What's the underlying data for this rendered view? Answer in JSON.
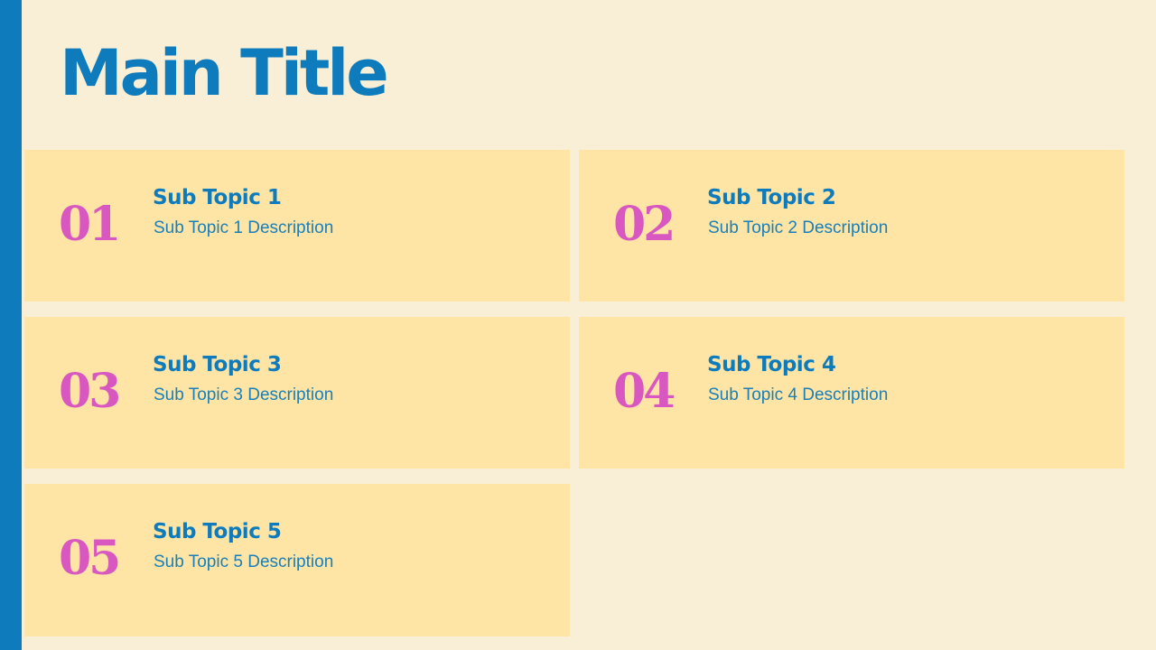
{
  "title": "Main Title",
  "colors": {
    "accent": "#0e7bbd",
    "number": "#d957c0",
    "card": "#fee5a5",
    "background": "#f9efd6"
  },
  "topics": [
    {
      "number": "01",
      "title": "Sub Topic 1",
      "description": "Sub Topic 1 Description"
    },
    {
      "number": "02",
      "title": "Sub Topic 2",
      "description": "Sub Topic 2 Description"
    },
    {
      "number": "03",
      "title": "Sub Topic 3",
      "description": "Sub Topic 3 Description"
    },
    {
      "number": "04",
      "title": "Sub Topic 4",
      "description": "Sub Topic 4 Description"
    },
    {
      "number": "05",
      "title": "Sub Topic 5",
      "description": "Sub Topic 5 Description"
    }
  ]
}
